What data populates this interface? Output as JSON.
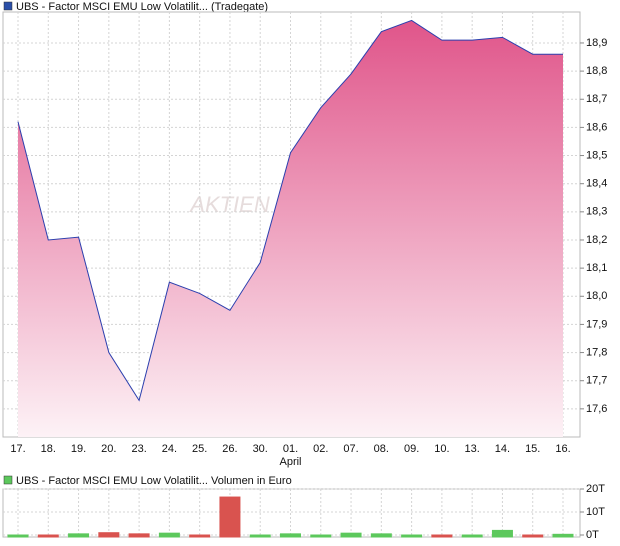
{
  "chart_data": [
    {
      "type": "area",
      "title": "UBS - Factor MSCI EMU Low Volatilit... (Tradegate)",
      "watermark": "AKTIEN",
      "categories": [
        "17.",
        "18.",
        "19.",
        "20.",
        "23.",
        "24.",
        "25.",
        "26.",
        "30.",
        "01.",
        "02.",
        "07.",
        "08.",
        "09.",
        "10.",
        "13.",
        "14.",
        "15.",
        "16."
      ],
      "subcategories": [
        null,
        null,
        null,
        null,
        null,
        null,
        null,
        null,
        null,
        "April",
        null,
        null,
        null,
        null,
        null,
        null,
        null,
        null,
        null
      ],
      "values": [
        18.62,
        18.2,
        18.21,
        17.8,
        17.63,
        18.05,
        18.01,
        17.95,
        18.12,
        18.51,
        18.67,
        18.79,
        18.94,
        18.98,
        18.91,
        18.91,
        18.92,
        18.86,
        18.86
      ],
      "color": "#2b3fae",
      "fill_top": "#e0558a",
      "fill_bottom": "#fdf2f6",
      "legend_color": "#2b4fa8",
      "ylim": [
        17.5,
        19.01
      ],
      "yticks": [
        {
          "value": 17.6,
          "label": "17,6"
        },
        {
          "value": 17.7,
          "label": "17,7"
        },
        {
          "value": 17.8,
          "label": "17,8"
        },
        {
          "value": 17.9,
          "label": "17,9"
        },
        {
          "value": 18.0,
          "label": "18,0"
        },
        {
          "value": 18.1,
          "label": "18,1"
        },
        {
          "value": 18.2,
          "label": "18,2"
        },
        {
          "value": 18.3,
          "label": "18,3"
        },
        {
          "value": 18.4,
          "label": "18,4"
        },
        {
          "value": 18.5,
          "label": "18,5"
        },
        {
          "value": 18.6,
          "label": "18,6"
        },
        {
          "value": 18.7,
          "label": "18,7"
        },
        {
          "value": 18.8,
          "label": "18,8"
        },
        {
          "value": 18.9,
          "label": "18,9"
        }
      ],
      "grid": true
    },
    {
      "type": "bar",
      "title": "UBS - Factor MSCI EMU Low Volatilit... Volumen in Euro",
      "legend_color": "#5cc85c",
      "values": [
        0,
        0,
        0.5,
        1,
        0.5,
        0.8,
        0,
        16.5,
        0,
        0.5,
        0,
        0.8,
        0.5,
        0,
        0,
        0,
        2,
        0,
        0.3
      ],
      "colors": [
        "#5cc85c",
        "#d9534f",
        "#5cc85c",
        "#d9534f",
        "#d9534f",
        "#5cc85c",
        "#d9534f",
        "#d9534f",
        "#5cc85c",
        "#5cc85c",
        "#5cc85c",
        "#5cc85c",
        "#5cc85c",
        "#5cc85c",
        "#d9534f",
        "#5cc85c",
        "#5cc85c",
        "#d9534f",
        "#5cc85c"
      ],
      "ylim": [
        0,
        20
      ],
      "yticks": [
        {
          "value": 0,
          "label": "0T"
        },
        {
          "value": 10,
          "label": "10T"
        },
        {
          "value": 20,
          "label": "20T"
        }
      ],
      "grid": true
    }
  ]
}
